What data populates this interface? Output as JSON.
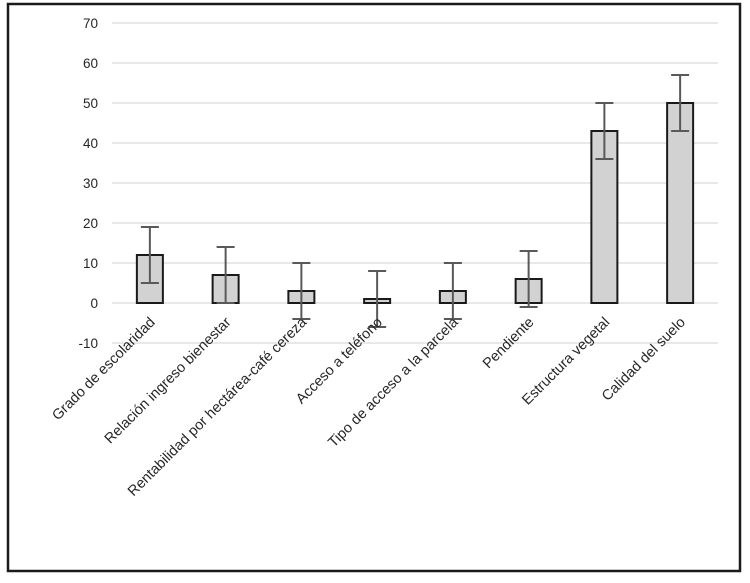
{
  "chart_data": {
    "type": "bar",
    "title": "",
    "xlabel": "",
    "ylabel": "",
    "categories": [
      "Grado de escolaridad",
      "Relación ingreso bienestar",
      "Rentabilidad por hectárea-café cereza",
      "Acceso a teléfono",
      "Tipo de acceso a la parcela",
      "Pendiente",
      "Estructura vegetal",
      "Calidad del suelo"
    ],
    "values": [
      12,
      7,
      3,
      1,
      3,
      6,
      43,
      50
    ],
    "error_low": [
      5,
      0,
      -4,
      -6,
      -4,
      -1,
      36,
      43
    ],
    "error_high": [
      19,
      14,
      10,
      8,
      10,
      13,
      50,
      57
    ],
    "ylim": [
      -10,
      70
    ],
    "yticks": [
      -10,
      0,
      10,
      20,
      30,
      40,
      50,
      60,
      70
    ],
    "grid": true,
    "legend": "none",
    "label_rotation_deg": 45,
    "colors": {
      "bar_fill": "#d2d2d2",
      "bar_stroke": "#1a1a1a",
      "error_bar": "#595959",
      "gridline": "#d9d9d9",
      "tick_text": "#262626",
      "category_text": "#262626",
      "frame_border": "#1b1b1b",
      "background": "#ffffff"
    }
  }
}
